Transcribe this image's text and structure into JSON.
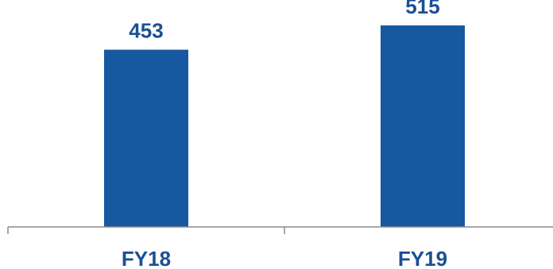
{
  "chart_data": {
    "type": "bar",
    "title": "",
    "xlabel": "",
    "ylabel": "",
    "categories": [
      "FY18",
      "FY19"
    ],
    "values": [
      453,
      515
    ],
    "data_labels": [
      "453",
      "515"
    ],
    "ylim": [
      0,
      580
    ],
    "grid": false,
    "legend": "none",
    "colors": {
      "bar": "#1759a1",
      "label": "#1a4f94",
      "axis": "#8c8c8c"
    }
  }
}
